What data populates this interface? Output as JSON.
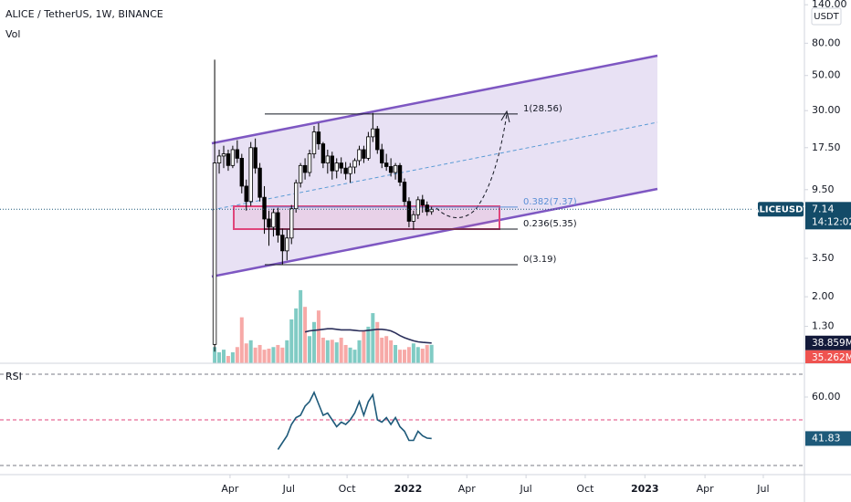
{
  "chart_data": {
    "type": "candlestick",
    "title": "ALICE / TetherUS, 1W, BINANCE",
    "currency": "USDT",
    "symbol": "ALICEUSDT",
    "last_price": 7.14,
    "countdown": "14:12:02",
    "log_scale": true,
    "x": [
      0,
      1,
      2,
      3,
      4,
      5,
      6,
      7,
      8,
      9,
      10,
      11,
      12,
      13,
      14,
      15,
      16,
      17,
      18,
      19,
      20,
      21,
      22,
      23,
      24,
      25,
      26,
      27,
      28,
      29,
      30,
      31,
      32,
      33,
      34,
      35,
      36,
      37,
      38,
      39,
      40,
      41,
      42,
      43,
      44,
      45,
      46,
      47,
      48
    ],
    "open": [
      1.0,
      14,
      15.5,
      16,
      13.5,
      17,
      15,
      10,
      8,
      17.5,
      13,
      8.5,
      6.2,
      5.5,
      6.8,
      4.9,
      3.9,
      4.7,
      7.2,
      10.5,
      13.5,
      12.2,
      16,
      22,
      18.5,
      14,
      15.5,
      12.5,
      14,
      13,
      12,
      13.2,
      14.5,
      17,
      15,
      20.5,
      23,
      17,
      14,
      13.3,
      12.2,
      13.5,
      10.6,
      8,
      6,
      6.6,
      8.2,
      7.6,
      6.9
    ],
    "high": [
      63,
      17,
      18,
      17,
      18,
      19.5,
      16,
      11,
      19,
      20,
      14,
      10,
      7,
      7.2,
      7.3,
      5.4,
      5.3,
      7.6,
      11,
      14,
      15,
      17,
      24,
      25,
      19,
      17,
      16.5,
      15,
      15.2,
      14.2,
      14,
      15,
      18,
      18,
      22,
      29,
      24,
      18.5,
      16,
      15,
      14,
      14,
      11.2,
      8.5,
      7,
      8.6,
      8.8,
      8,
      7.4
    ],
    "low": [
      0.9,
      12,
      13,
      12.5,
      13,
      14,
      9,
      7,
      7.5,
      12,
      8,
      5,
      4.2,
      4.8,
      4.4,
      3.2,
      3.4,
      4.3,
      6.8,
      9.8,
      11,
      11.5,
      15,
      17,
      13,
      12,
      11,
      11.2,
      12,
      11,
      10.5,
      12,
      13.5,
      14,
      14.5,
      19,
      16,
      13,
      12.5,
      11.5,
      11,
      10,
      7.5,
      5.5,
      5.3,
      6.2,
      6.8,
      6.5,
      6.6
    ],
    "close": [
      14,
      15.5,
      16,
      13.5,
      17,
      15,
      10,
      8,
      17.5,
      13,
      8.5,
      6.2,
      5.5,
      6.8,
      4.9,
      3.9,
      4.7,
      7.2,
      10.5,
      13.5,
      12.2,
      16,
      22,
      18.5,
      14,
      15.5,
      12.5,
      14,
      13,
      12,
      13.2,
      14.5,
      17,
      15,
      20.5,
      23,
      17,
      14,
      13.3,
      12.2,
      13.5,
      10.6,
      8,
      6,
      6.6,
      8.2,
      7.6,
      6.9,
      7.14
    ],
    "up_color": "#ffffff",
    "down_color": "#000000",
    "xlim": [
      -47.5,
      130.3
    ],
    "xticks": [
      {
        "value": 3.4,
        "label": "Apr"
      },
      {
        "value": 16.4,
        "label": "Jul"
      },
      {
        "value": 29.3,
        "label": "Oct"
      },
      {
        "value": 42.8,
        "label": "2022"
      },
      {
        "value": 55.8,
        "label": "Apr"
      },
      {
        "value": 68.9,
        "label": "Jul"
      },
      {
        "value": 82,
        "label": "Oct"
      },
      {
        "value": 95.2,
        "label": "2023"
      },
      {
        "value": 108.5,
        "label": "Apr"
      },
      {
        "value": 121.4,
        "label": "Jul"
      }
    ],
    "ylim": [
      0.76,
      150
    ],
    "yticks": [
      {
        "value": 140,
        "label": "140.00"
      },
      {
        "value": 80,
        "label": "80.00"
      },
      {
        "value": 50,
        "label": "50.00"
      },
      {
        "value": 30,
        "label": "30.00"
      },
      {
        "value": 17.5,
        "label": "17.50"
      },
      {
        "value": 9.5,
        "label": "9.50"
      },
      {
        "value": 3.5,
        "label": "3.50"
      },
      {
        "value": 2,
        "label": "2.00"
      },
      {
        "value": 1.3,
        "label": "1.30"
      }
    ],
    "fib_levels": [
      {
        "value": 28.56,
        "label": "1(28.56)",
        "color": "#131722"
      },
      {
        "value": 7.37,
        "label": "0.382(7.37)",
        "color": "#5b8fd6"
      },
      {
        "value": 5.35,
        "label": "0.236(5.35)",
        "color": "#131722"
      },
      {
        "value": 3.19,
        "label": "0(3.19)",
        "color": "#131722"
      }
    ],
    "volume": {
      "label": "Vol",
      "values": [
        31,
        21,
        26,
        14,
        21,
        31,
        88,
        38,
        44,
        30,
        35,
        26,
        28,
        31,
        35,
        30,
        44,
        84,
        105,
        140,
        108,
        52,
        79,
        101,
        49,
        44,
        45,
        40,
        49,
        35,
        30,
        26,
        44,
        61,
        70,
        96,
        79,
        49,
        52,
        44,
        35,
        26,
        26,
        31,
        38,
        31,
        28,
        35,
        35.262
      ],
      "value_labels": [
        null,
        null,
        null,
        null,
        null,
        null,
        null,
        null,
        null,
        null,
        null,
        null,
        null,
        null,
        null,
        null,
        null,
        null,
        null,
        null,
        null,
        null,
        null,
        null,
        null,
        null,
        null,
        null,
        null,
        null,
        null,
        null,
        null,
        null,
        null,
        null,
        null,
        null,
        null,
        null,
        null,
        null,
        null,
        null,
        null,
        null,
        null,
        null,
        "35.262M"
      ],
      "up_color": "#80cbc4",
      "down_color": "#f7a9a7",
      "ylim": [
        0,
        180
      ],
      "ma": {
        "values": [
          null,
          null,
          null,
          null,
          null,
          null,
          null,
          null,
          null,
          null,
          null,
          null,
          null,
          null,
          null,
          null,
          null,
          null,
          null,
          null,
          60,
          62,
          63,
          64,
          65,
          66,
          66,
          65,
          64,
          64,
          64,
          63,
          62,
          62,
          63,
          64,
          65,
          65,
          64,
          62,
          58,
          53,
          49,
          46,
          43,
          41,
          40,
          39.5,
          38.859
        ],
        "value_labels": [
          null,
          null,
          null,
          null,
          null,
          null,
          null,
          null,
          null,
          null,
          null,
          null,
          null,
          null,
          null,
          null,
          null,
          null,
          null,
          null,
          null,
          null,
          null,
          null,
          null,
          null,
          null,
          null,
          null,
          null,
          null,
          null,
          null,
          null,
          null,
          null,
          null,
          null,
          null,
          null,
          null,
          null,
          null,
          null,
          null,
          null,
          null,
          null,
          "38.859M"
        ],
        "color": "#2a2e5a"
      }
    },
    "rsi": {
      "label": "RSI",
      "values": [
        null,
        null,
        null,
        null,
        null,
        null,
        null,
        null,
        null,
        null,
        null,
        null,
        null,
        null,
        37,
        40,
        43,
        48,
        51,
        52,
        56,
        58,
        62,
        57,
        52,
        53,
        50,
        47,
        49,
        48,
        50,
        53,
        58,
        52,
        58,
        61,
        50,
        49,
        51,
        48,
        51,
        47,
        45,
        41,
        41,
        45,
        43,
        42,
        41.83
      ],
      "color": "#1e5a7a",
      "ylim": [
        26,
        74.8
      ],
      "yticks": [
        {
          "value": 60,
          "label": "60.00"
        }
      ],
      "levels": [
        70,
        50,
        30
      ]
    }
  }
}
